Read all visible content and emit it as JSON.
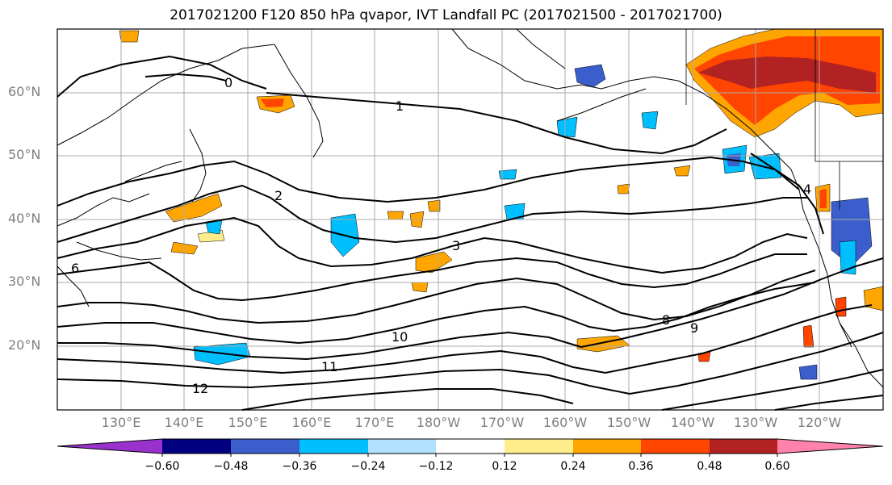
{
  "title": "2017021200 F120 850 hPa qvapor, IVT Landfall PC (2017021500 - 2017021700)",
  "lat_labels": [
    "60°N",
    "50°N",
    "40°N",
    "30°N",
    "20°N"
  ],
  "lon_labels": [
    "130°E",
    "140°E",
    "150°E",
    "160°E",
    "170°E",
    "180°W",
    "170°W",
    "160°W",
    "150°W",
    "140°W",
    "130°W",
    "120°W"
  ],
  "contour_labels": [
    "0",
    "1",
    "2",
    "3",
    "4",
    "6",
    "8",
    "9",
    "10",
    "11",
    "12"
  ],
  "colorbar": {
    "ticks": [
      "−0.60",
      "−0.48",
      "−0.36",
      "−0.24",
      "−0.12",
      "0.12",
      "0.24",
      "0.36",
      "0.48",
      "0.60"
    ],
    "colors": [
      "#9932cc",
      "#000080",
      "#3a5fcd",
      "#00bfff",
      "#b0e2ff",
      "#ffffff",
      "#ffec8b",
      "#ffa500",
      "#ff4500",
      "#b22222",
      "#ff82ab"
    ]
  },
  "colors": {
    "positive_strong": "#b22222",
    "positive_mid": "#ff4500",
    "positive": "#ffa500",
    "positive_weak": "#ffec8b",
    "negative_weak": "#b0e2ff",
    "negative": "#00bfff",
    "negative_strong": "#3a5fcd"
  }
}
